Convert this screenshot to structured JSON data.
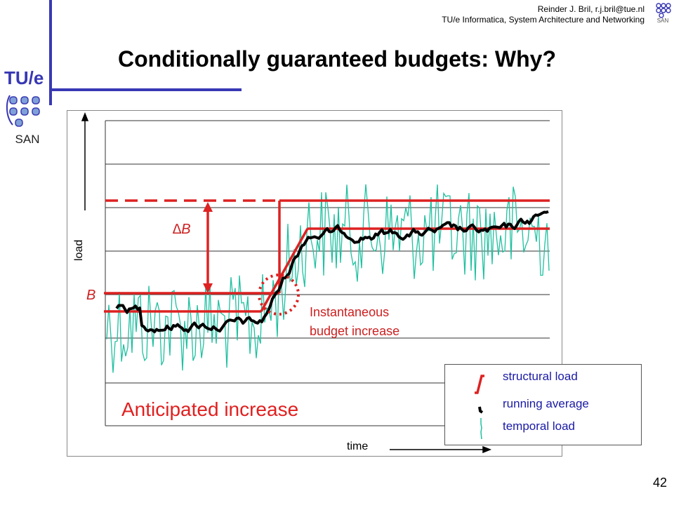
{
  "header": {
    "author_line": "Reinder J. Bril, r.j.bril@tue.nl",
    "affiliation": "TU/e Informatica, System Architecture and Networking"
  },
  "logo": {
    "tue_text": "TU/e",
    "san_text": "SAN"
  },
  "slide": {
    "title": "Conditionally guaranteed budgets: Why?",
    "page_number": "42"
  },
  "chart_data": {
    "type": "line",
    "xlabel": "time",
    "ylabel": "load",
    "grid": true,
    "annotations": {
      "budget": "B",
      "delta_budget": "∆B",
      "instantaneous_line1": "Instantaneous",
      "instantaneous_line2": "budget increase",
      "anticipated": "Anticipated increase"
    },
    "series": [
      {
        "name": "structural load"
      },
      {
        "name": "running average"
      },
      {
        "name": "temporal load"
      }
    ]
  },
  "legend": {
    "structural": "structural load",
    "running": "running average",
    "temporal": "temporal load"
  },
  "colors": {
    "accent_blue": "#3838b4",
    "budget_red": "#dd2222",
    "temporal_teal": "#20c0a0",
    "running_black": "#000000",
    "legend_text": "#1a1aa6"
  }
}
